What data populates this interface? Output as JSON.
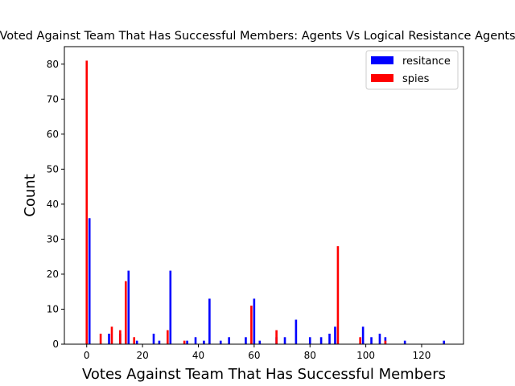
{
  "chart_data": {
    "type": "bar",
    "title": "Voted Against Team That Has Successful Members: Agents Vs Logical Resistance Agents",
    "xlabel": "Votes Against Team That Has Successful Members",
    "ylabel": "Count",
    "xlim": [
      -8,
      135
    ],
    "ylim": [
      0,
      85
    ],
    "xticks": [
      0,
      20,
      40,
      60,
      80,
      100,
      120
    ],
    "yticks": [
      0,
      10,
      20,
      30,
      40,
      50,
      60,
      70,
      80
    ],
    "legend_position": "top-right",
    "series": [
      {
        "name": "resitance",
        "color": "#0000ff",
        "x": [
          1,
          8,
          12,
          15,
          18,
          24,
          26,
          30,
          36,
          39,
          42,
          44,
          48,
          51,
          57,
          60,
          62,
          68,
          71,
          75,
          80,
          84,
          87,
          89,
          99,
          102,
          105,
          107,
          114,
          128
        ],
        "values": [
          36,
          3,
          3,
          21,
          1,
          3,
          1,
          21,
          1,
          2,
          1,
          13,
          1,
          2,
          2,
          13,
          1,
          2,
          2,
          7,
          2,
          2,
          3,
          5,
          5,
          2,
          3,
          2,
          1,
          1
        ]
      },
      {
        "name": "spies",
        "color": "#ff0000",
        "x": [
          0,
          5,
          9,
          12,
          14,
          17,
          29,
          35,
          59,
          68,
          90,
          98,
          107
        ],
        "values": [
          81,
          3,
          5,
          4,
          18,
          2,
          4,
          1,
          11,
          4,
          28,
          2,
          1
        ]
      }
    ]
  }
}
